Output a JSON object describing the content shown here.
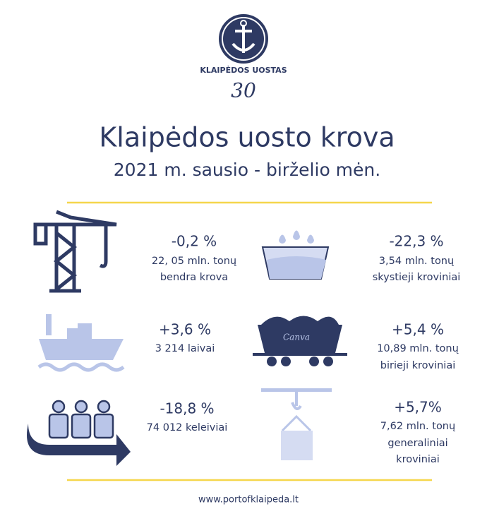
{
  "logo": {
    "name": "KLAIPĖDOS UOSTAS",
    "anniversary": "30"
  },
  "header": {
    "title": "Klaipėdos uosto krova",
    "subtitle": "2021 m. sausio - birželio mėn."
  },
  "stats": [
    {
      "change": "-0,2 %",
      "lines": [
        "22, 05 mln. tonų",
        "bendra krova"
      ]
    },
    {
      "change": "-22,3 %",
      "lines": [
        "3,54 mln. tonų",
        "skystieji kroviniai"
      ]
    },
    {
      "change": "+3,6 %",
      "lines": [
        "3 214 laivai"
      ]
    },
    {
      "change": "+5,4 %",
      "lines": [
        "10,89 mln. tonų",
        "birieji kroviniai"
      ]
    },
    {
      "change": "-18,8 %",
      "lines": [
        "74 012 keleiviai"
      ]
    },
    {
      "change": "+5,7%",
      "lines": [
        "7,62 mln. tonų",
        "generaliniai",
        "kroviniai"
      ]
    }
  ],
  "watermark": "Canva",
  "footer": "www.portofklaipeda.lt"
}
